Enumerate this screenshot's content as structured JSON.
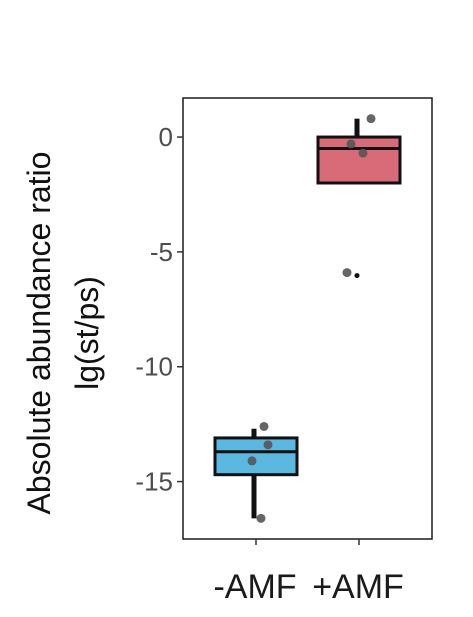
{
  "chart_data": {
    "type": "boxplot",
    "ylabel_lines": [
      "Absolute abundance ratio",
      "lg(st/ps)"
    ],
    "yticks": [
      0,
      -5,
      -10,
      -15
    ],
    "ytick_labels": [
      "0",
      "-5",
      "-10",
      "-15"
    ],
    "ylim": [
      -17.5,
      1.7
    ],
    "grid": false,
    "categories": [
      "-AMF",
      "+AMF"
    ],
    "boxes": [
      {
        "category": "-AMF",
        "color": "#5bb8e0",
        "q1": -14.7,
        "median": -13.7,
        "q3": -13.1,
        "whisker_low": -16.6,
        "whisker_high": -12.7,
        "points": [
          -12.6,
          -13.4,
          -14.1,
          -16.6
        ],
        "outliers": []
      },
      {
        "category": "+AMF",
        "color": "#d96b78",
        "q1": -2.0,
        "median": -0.5,
        "q3": 0.0,
        "whisker_low": -2.0,
        "whisker_high": 0.8,
        "points": [
          0.8,
          -0.3,
          -0.7
        ],
        "outliers": [
          -5.9
        ]
      }
    ]
  }
}
